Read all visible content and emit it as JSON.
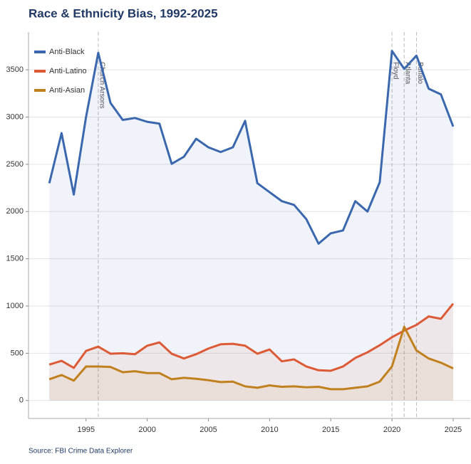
{
  "chart_data": {
    "type": "line",
    "title": "Race & Ethnicity Bias, 1992-2025",
    "source": "Source: FBI Crime Data Explorer",
    "x": [
      1992,
      1993,
      1994,
      1995,
      1996,
      1997,
      1998,
      1999,
      2000,
      2001,
      2002,
      2003,
      2004,
      2005,
      2006,
      2007,
      2008,
      2009,
      2010,
      2011,
      2012,
      2013,
      2014,
      2015,
      2016,
      2017,
      2018,
      2019,
      2020,
      2021,
      2022,
      2023,
      2024,
      2025
    ],
    "series": [
      {
        "name": "Anti-Black",
        "color": "#3a67ad",
        "fill": "rgba(58,103,173,0.08)",
        "values": [
          2300,
          2830,
          2180,
          3000,
          3680,
          3150,
          2970,
          2990,
          2950,
          2930,
          2505,
          2580,
          2770,
          2680,
          2630,
          2680,
          2960,
          2300,
          2205,
          2110,
          2070,
          1920,
          1660,
          1770,
          1800,
          2110,
          2000,
          2310,
          3700,
          3510,
          3650,
          3300,
          3240,
          2900
        ]
      },
      {
        "name": "Anti-Latino",
        "color": "#dc5a35",
        "fill": "rgba(220,90,53,0.08)",
        "values": [
          380,
          420,
          345,
          525,
          570,
          495,
          500,
          490,
          580,
          615,
          495,
          445,
          490,
          550,
          595,
          600,
          580,
          495,
          540,
          415,
          435,
          360,
          320,
          315,
          360,
          450,
          510,
          585,
          670,
          740,
          800,
          890,
          865,
          1025
        ]
      },
      {
        "name": "Anti-Asian",
        "color": "#c0801e",
        "fill": "rgba(192,128,30,0.08)",
        "values": [
          225,
          270,
          210,
          360,
          360,
          355,
          300,
          310,
          290,
          290,
          225,
          240,
          230,
          215,
          195,
          200,
          150,
          135,
          160,
          145,
          150,
          140,
          145,
          120,
          120,
          135,
          150,
          200,
          360,
          780,
          530,
          445,
          400,
          340
        ]
      }
    ],
    "annotations": [
      {
        "x": 1996,
        "text": "Church Arsons"
      },
      {
        "x": 2020,
        "text": "Floyd"
      },
      {
        "x": 2021,
        "text": "Atlanta"
      },
      {
        "x": 2022,
        "text": "Buffalo"
      }
    ],
    "xlim": [
      1990.3,
      2026.4
    ],
    "ylim": [
      -190,
      3900
    ],
    "xticks": [
      1995,
      2000,
      2005,
      2010,
      2015,
      2020,
      2025
    ],
    "yticks": [
      0,
      500,
      1000,
      1500,
      2000,
      2500,
      3000,
      3500
    ],
    "grid": true,
    "legend": "upper left"
  }
}
